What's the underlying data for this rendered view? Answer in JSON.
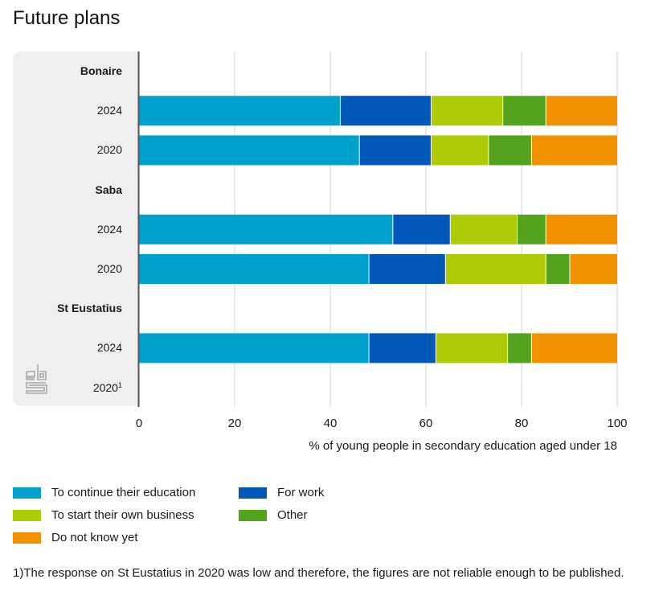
{
  "title": "Future plans",
  "logo": "cbs-logo",
  "footnote": "1)The response on St Eustatius in 2020 was low and therefore, the figures are not reliable enough to be published.",
  "chart_data": {
    "type": "bar",
    "orientation": "horizontal",
    "stacked": true,
    "title": "Future plans",
    "xlabel": "% of young people in secondary education aged under 18",
    "ylabel": "",
    "xlim": [
      0,
      100
    ],
    "xticks": [
      "0",
      "20",
      "40",
      "60",
      "80",
      "100"
    ],
    "grid": true,
    "legend_position": "bottom",
    "rows": [
      {
        "label": "Bonaire",
        "group": true
      },
      {
        "label": "2024",
        "values": [
          42,
          19,
          15,
          9,
          15
        ]
      },
      {
        "label": "2020",
        "values": [
          46,
          15,
          12,
          9,
          18
        ]
      },
      {
        "label": "Saba",
        "group": true
      },
      {
        "label": "2024",
        "values": [
          53,
          12,
          14,
          6,
          15
        ]
      },
      {
        "label": "2020",
        "values": [
          48,
          16,
          21,
          5,
          10
        ]
      },
      {
        "label": "St Eustatius",
        "group": true
      },
      {
        "label": "2024",
        "values": [
          48,
          14,
          15,
          5,
          18
        ]
      },
      {
        "label": "2020",
        "footnote_mark": "1",
        "values": null
      }
    ],
    "series": [
      {
        "name": "To continue their education",
        "color": "#00A1CD"
      },
      {
        "name": "For work",
        "color": "#0058B8"
      },
      {
        "name": "To start their own business",
        "color": "#AFCB05"
      },
      {
        "name": "Other",
        "color": "#53A31D"
      },
      {
        "name": "Do not know yet",
        "color": "#F39200"
      }
    ]
  }
}
